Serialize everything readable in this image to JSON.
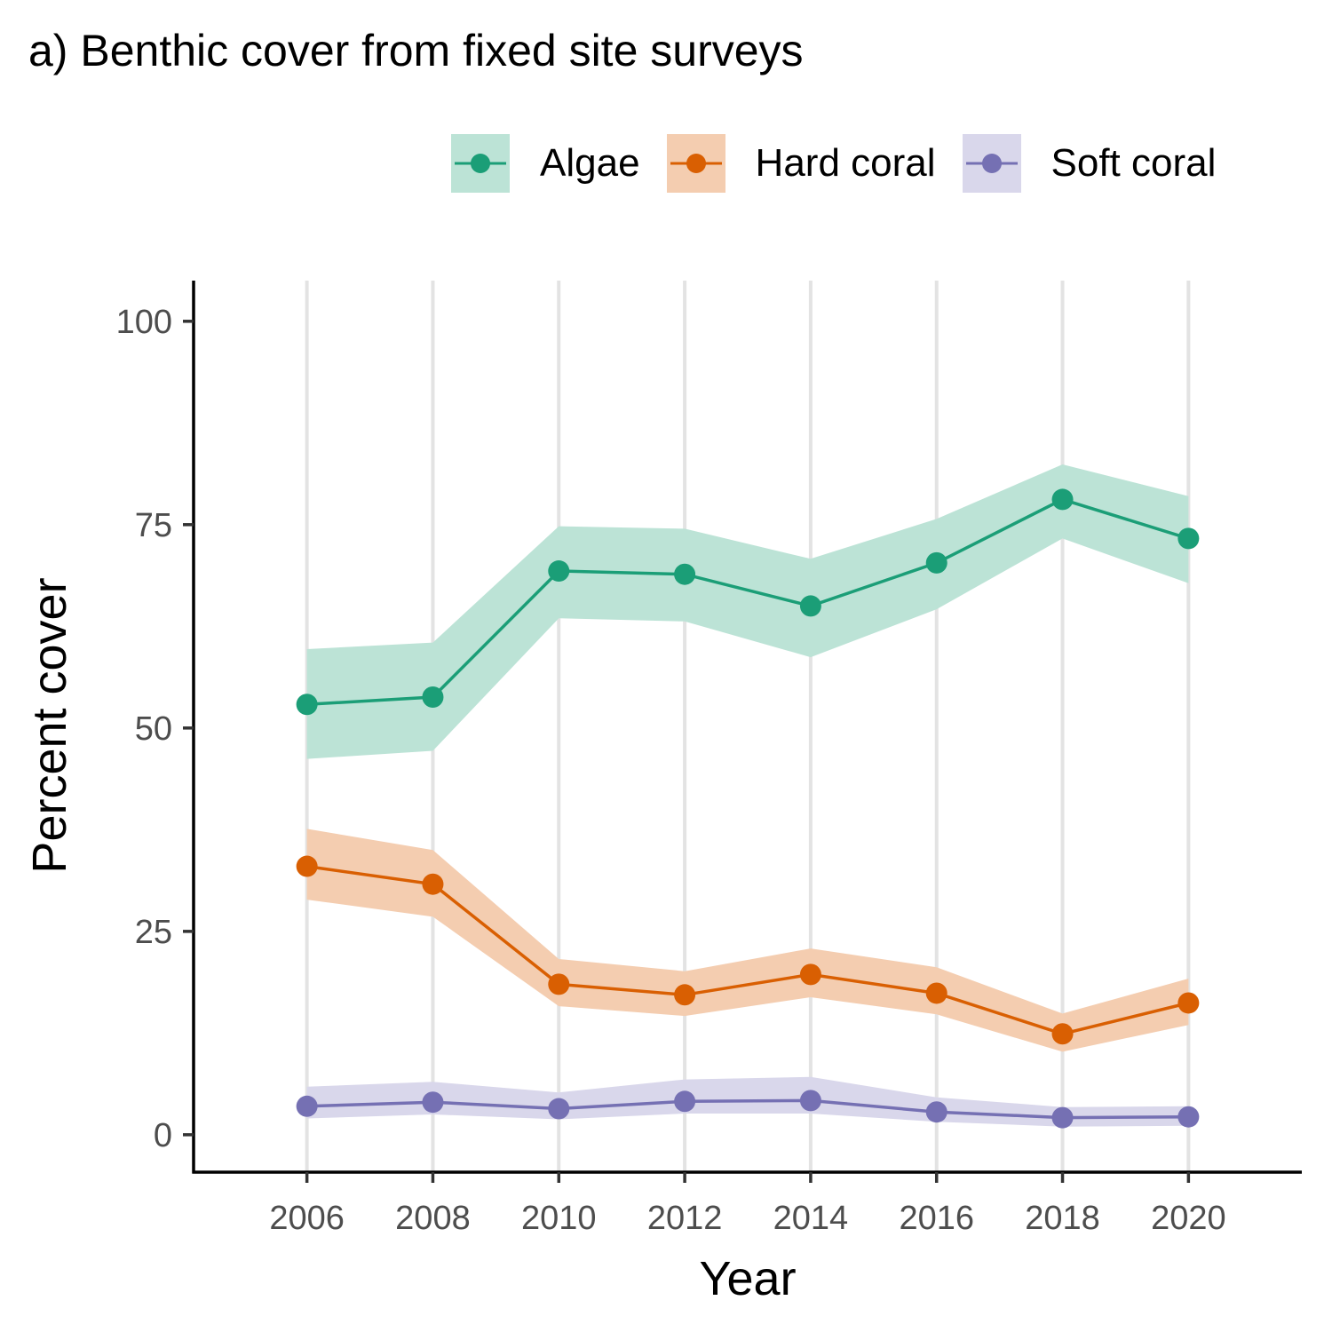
{
  "chart_data": {
    "type": "line",
    "title": "a) Benthic cover from fixed site surveys",
    "xlabel": "Year",
    "ylabel": "Percent cover",
    "x": [
      2006,
      2008,
      2010,
      2012,
      2014,
      2016,
      2018,
      2020
    ],
    "x_ticks": [
      "2006",
      "2008",
      "2010",
      "2012",
      "2014",
      "2016",
      "2018",
      "2020"
    ],
    "y_ticks": [
      "0",
      "25",
      "50",
      "75",
      "100"
    ],
    "xlim": [
      2004.2,
      2021.8
    ],
    "ylim": [
      -4.6,
      105
    ],
    "grid": "vertical major gridlines",
    "legend_position": "top-right",
    "series": [
      {
        "name": "Algae",
        "color": "#1b9e77",
        "fill": "#bce3d6",
        "values": [
          52.9,
          53.8,
          69.3,
          68.9,
          65.0,
          70.3,
          78.1,
          73.3
        ],
        "upper": [
          59.7,
          60.5,
          74.8,
          74.5,
          70.8,
          75.7,
          82.4,
          78.5
        ],
        "lower": [
          46.2,
          47.2,
          63.5,
          63.1,
          58.7,
          64.6,
          73.3,
          67.8
        ]
      },
      {
        "name": "Hard coral",
        "color": "#d95f02",
        "fill": "#f4cdb0",
        "values": [
          33.0,
          30.8,
          18.5,
          17.2,
          19.7,
          17.4,
          12.4,
          16.2
        ],
        "upper": [
          37.6,
          35.0,
          21.6,
          20.1,
          22.9,
          20.6,
          14.9,
          19.2
        ],
        "lower": [
          28.9,
          26.8,
          15.8,
          14.6,
          16.9,
          14.8,
          10.2,
          13.5
        ]
      },
      {
        "name": "Soft coral",
        "color": "#7570b3",
        "fill": "#d9d7eb",
        "values": [
          3.5,
          4.0,
          3.2,
          4.1,
          4.2,
          2.8,
          2.1,
          2.2
        ],
        "upper": [
          5.9,
          6.5,
          5.2,
          6.8,
          7.1,
          4.6,
          3.4,
          3.5
        ],
        "lower": [
          2.0,
          2.5,
          1.9,
          2.6,
          2.6,
          1.6,
          1.0,
          1.1
        ]
      }
    ]
  }
}
